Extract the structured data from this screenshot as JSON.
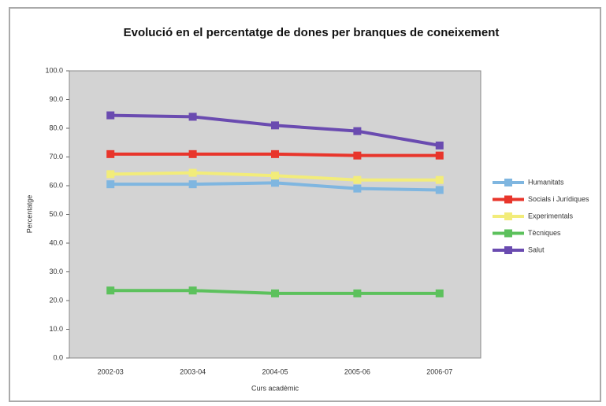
{
  "chart_data": {
    "type": "line",
    "title": "Evolució en el percentatge de dones per branques de coneixement",
    "x_label": "Curs acadèmic",
    "y_label": "Percentatge",
    "categories": [
      "2002-03",
      "2003-04",
      "2004-05",
      "2005-06",
      "2006-07"
    ],
    "series": [
      {
        "name": "Humanitats",
        "color": "#7fb6e0",
        "values": [
          60.5,
          60.5,
          61,
          59,
          58.5
        ]
      },
      {
        "name": "Socials i Jurídiques",
        "color": "#e8352b",
        "values": [
          71,
          71,
          71,
          70.5,
          70.5
        ]
      },
      {
        "name": "Experimentals",
        "color": "#f2ec7a",
        "values": [
          64,
          64.5,
          63.5,
          62,
          62
        ]
      },
      {
        "name": "Tècniques",
        "color": "#5cc15c",
        "values": [
          23.5,
          23.5,
          22.5,
          22.5,
          22.5
        ]
      },
      {
        "name": "Salut",
        "color": "#6a4bb0",
        "values": [
          84.5,
          84,
          81,
          79,
          74
        ]
      }
    ],
    "ylim": [
      0,
      100
    ],
    "yticks": [
      {
        "value": 0,
        "label": "0.0"
      },
      {
        "value": 10,
        "label": "10.0"
      },
      {
        "value": 20,
        "label": "20.0"
      },
      {
        "value": 30,
        "label": "30.0"
      },
      {
        "value": 40,
        "label": "40.0"
      },
      {
        "value": 50,
        "label": "50.0"
      },
      {
        "value": 60,
        "label": "60.0"
      },
      {
        "value": 70,
        "label": "70.0"
      },
      {
        "value": 80,
        "label": "80.0"
      },
      {
        "value": 90,
        "label": "90.0"
      },
      {
        "value": 100,
        "label": "100.0"
      }
    ],
    "legend": "right"
  }
}
